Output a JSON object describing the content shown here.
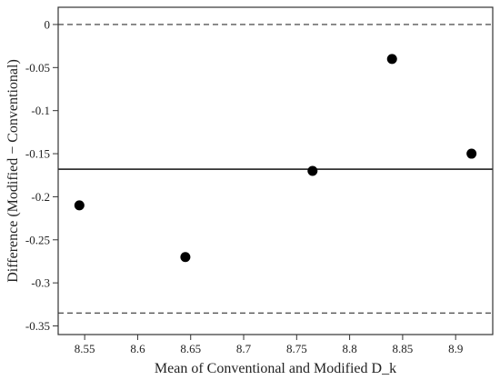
{
  "chart_data": {
    "type": "scatter",
    "title": "",
    "xlabel": "Mean of Conventional and Modified D_k",
    "ylabel": "Difference (Modified − Conventional)",
    "xlim": [
      8.525,
      8.935
    ],
    "ylim": [
      -0.36,
      0.02
    ],
    "xticks": [
      "8.55",
      "8.6",
      "8.65",
      "8.7",
      "8.75",
      "8.8",
      "8.85",
      "8.9"
    ],
    "yticks": [
      "0",
      "-0.05",
      "-0.1",
      "-0.15",
      "-0.2",
      "-0.25",
      "-0.3",
      "-0.35"
    ],
    "points": [
      {
        "x": 8.545,
        "y": -0.21
      },
      {
        "x": 8.645,
        "y": -0.27
      },
      {
        "x": 8.765,
        "y": -0.17
      },
      {
        "x": 8.84,
        "y": -0.04
      },
      {
        "x": 8.915,
        "y": -0.15
      }
    ],
    "reference_lines": [
      {
        "y": 0,
        "style": "dashed"
      },
      {
        "y": -0.168,
        "style": "solid"
      },
      {
        "y": -0.335,
        "style": "dashed"
      }
    ],
    "grid": false,
    "point_color": "#000000",
    "line_color": "#333333"
  }
}
